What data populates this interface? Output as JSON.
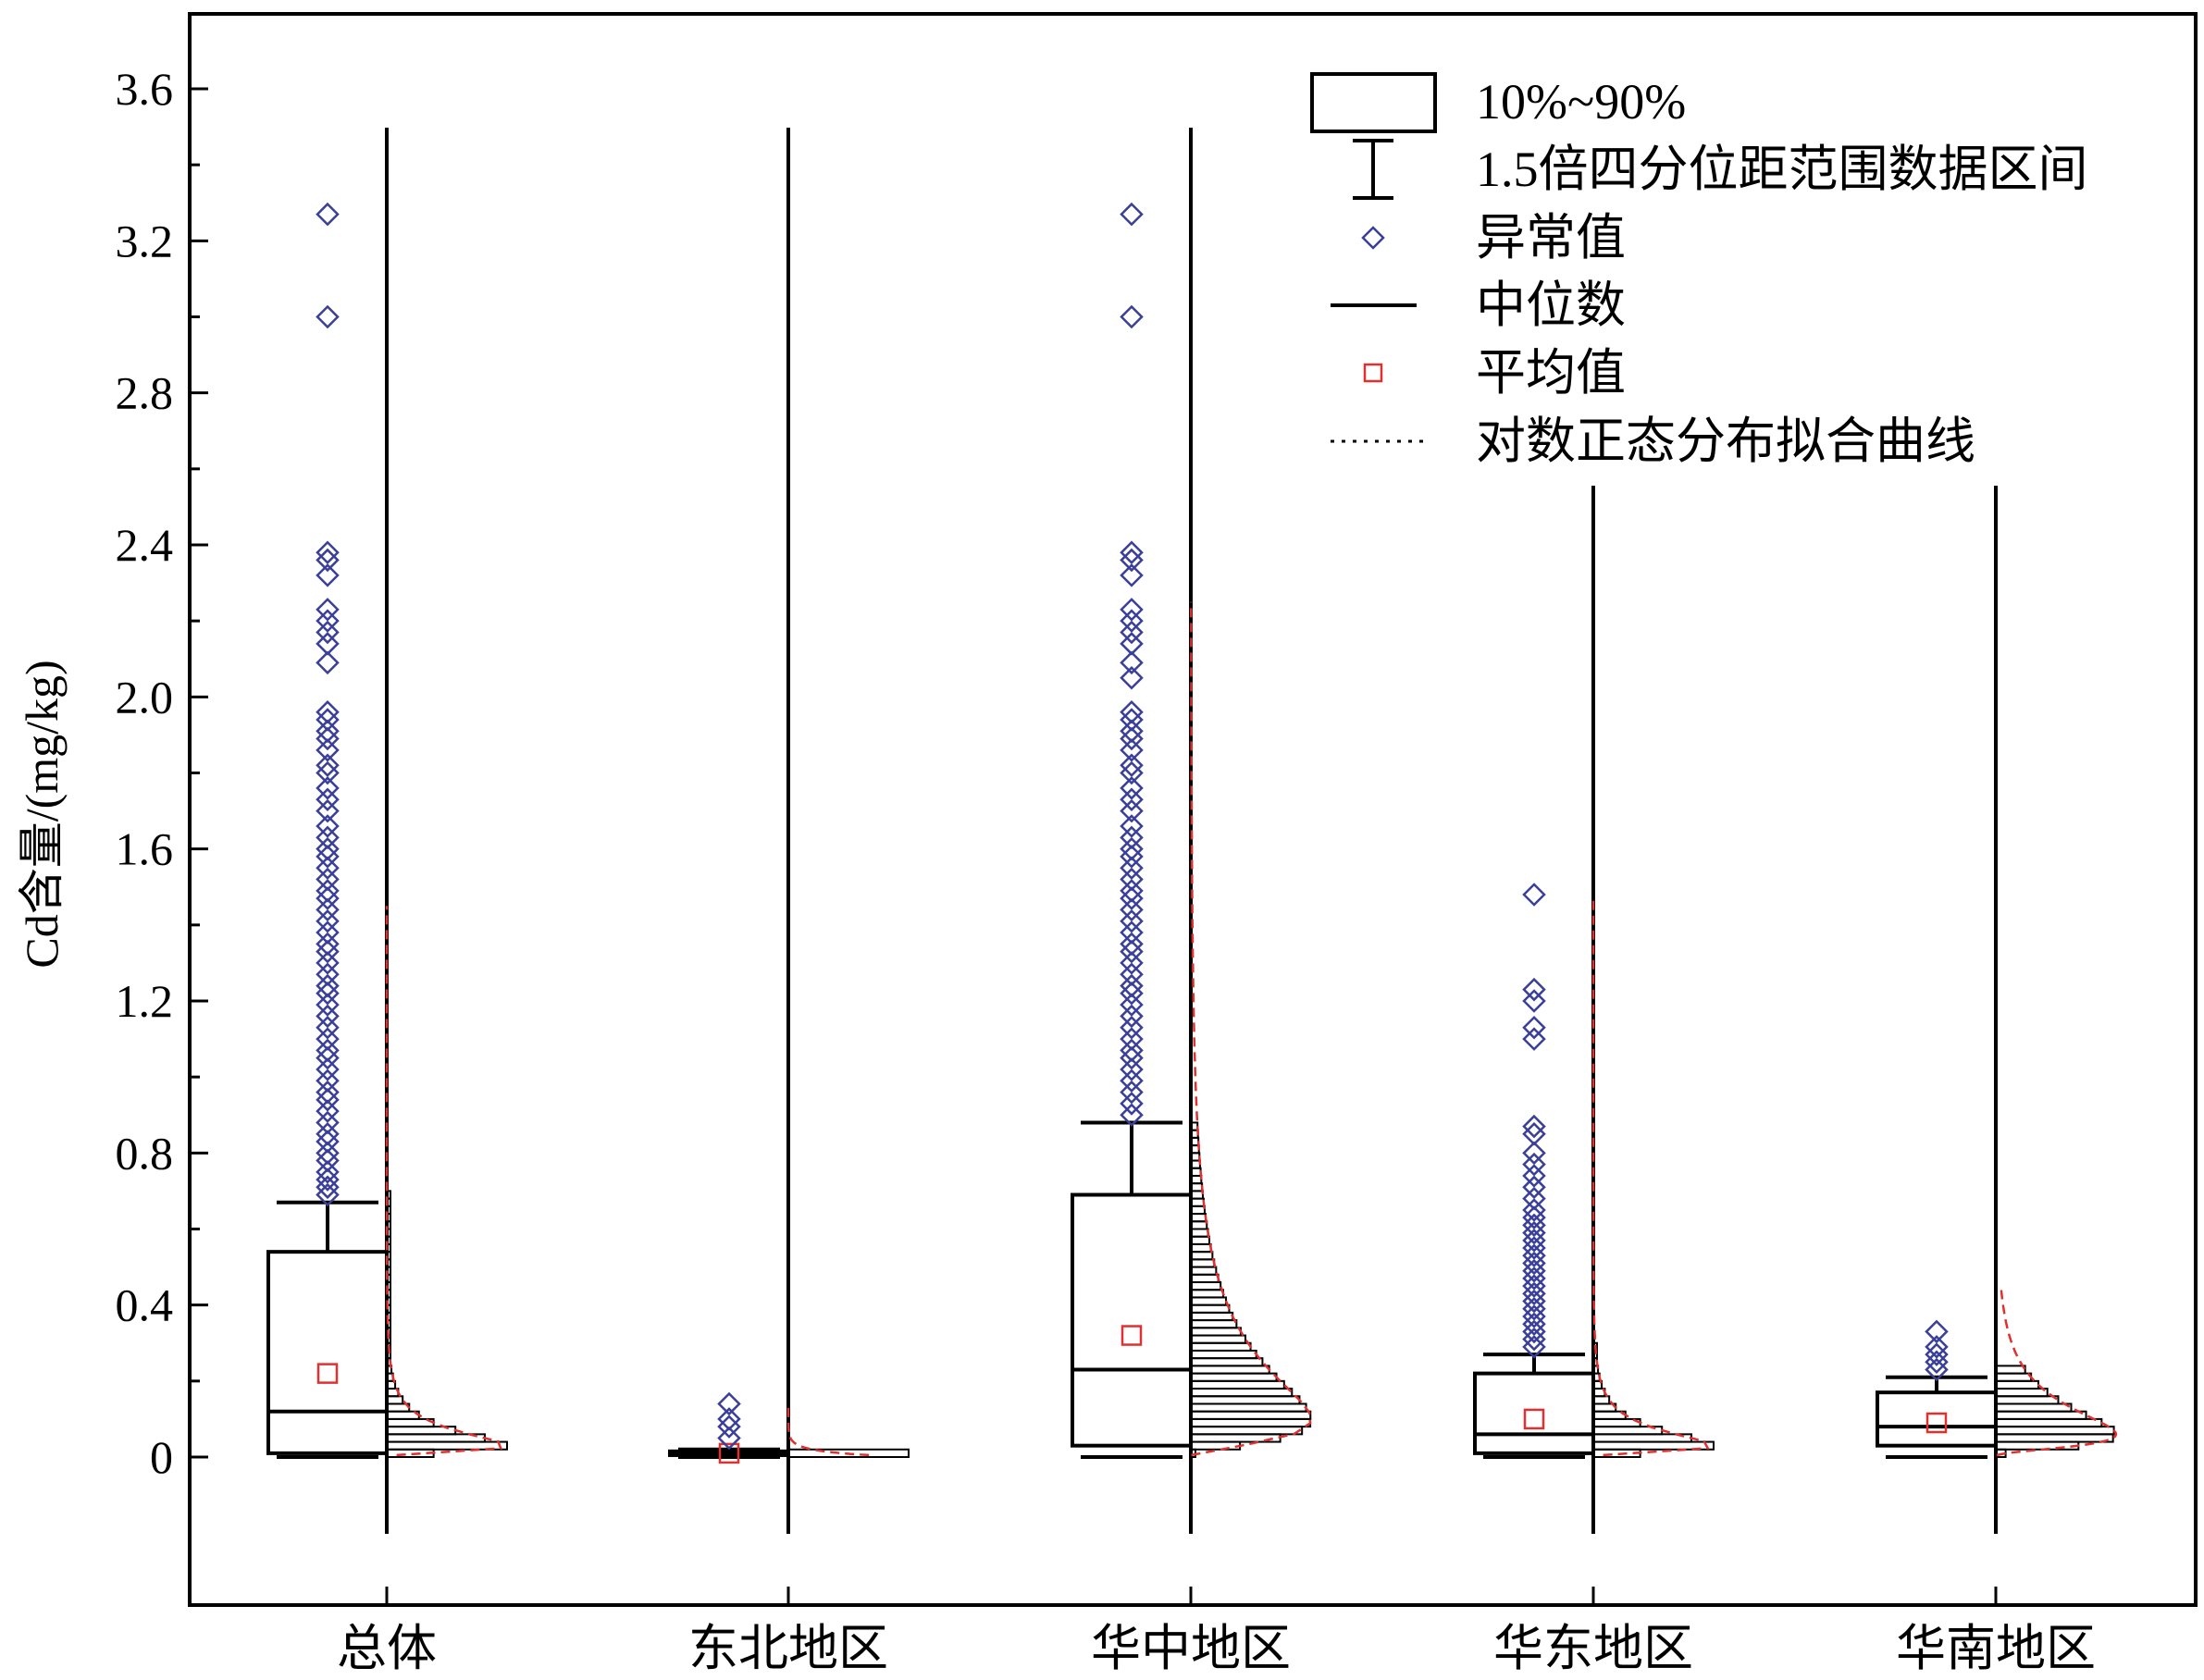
{
  "chart_data": {
    "type": "box",
    "ylabel": "Cd含量/(mg/kg)",
    "ylim": [
      -0.2,
      3.75
    ],
    "yticks": [
      "0",
      "0.4",
      "0.8",
      "1.2",
      "1.6",
      "2.0",
      "2.4",
      "2.8",
      "3.2",
      "3.6"
    ],
    "ytick_values": [
      0,
      0.4,
      0.8,
      1.2,
      1.6,
      2.0,
      2.4,
      2.8,
      3.2,
      3.6
    ],
    "categories": [
      "总体",
      "东北地区",
      "华中地区",
      "华东地区",
      "华南地区"
    ],
    "legend": {
      "box": "10%~90%",
      "whisker": "1.5倍四分位距范围数据区间",
      "outlier": "异常值",
      "median": "中位数",
      "mean": "平均值",
      "fit": "对数正态分布拟合曲线"
    },
    "colors": {
      "outlier": "#3a3f9a",
      "mean": "#e03030",
      "fit": "#e03030",
      "line": "#000000"
    },
    "groups": [
      {
        "name": "总体",
        "whisker_low": 0.0,
        "p10": 0.01,
        "median": 0.12,
        "p90": 0.54,
        "whisker_high": 0.67,
        "mean": 0.22,
        "outliers": [
          3.27,
          3.0,
          2.38,
          2.36,
          2.32,
          2.23,
          2.2,
          2.17,
          2.14,
          2.09,
          1.96,
          1.94,
          1.91,
          1.89,
          1.86,
          1.82,
          1.8,
          1.76,
          1.73,
          1.7,
          1.66,
          1.63,
          1.6,
          1.58,
          1.55,
          1.52,
          1.49,
          1.47,
          1.44,
          1.41,
          1.38,
          1.35,
          1.33,
          1.3,
          1.27,
          1.24,
          1.22,
          1.19,
          1.16,
          1.13,
          1.1,
          1.07,
          1.05,
          1.02,
          0.99,
          0.96,
          0.94,
          0.91,
          0.88,
          0.85,
          0.83,
          0.8,
          0.78,
          0.75,
          0.73,
          0.71,
          0.69
        ],
        "hist_max": 0.02,
        "fit_top": 1.45
      },
      {
        "name": "东北地区",
        "whisker_low": 0.0,
        "p10": 0.005,
        "median": 0.01,
        "p90": 0.015,
        "whisker_high": 0.02,
        "mean": 0.01,
        "outliers": [
          0.14,
          0.1,
          0.08,
          0.05
        ],
        "hist_max": 0.02,
        "fit_top": 0.13
      },
      {
        "name": "华中地区",
        "whisker_low": 0.0,
        "p10": 0.03,
        "median": 0.23,
        "p90": 0.69,
        "whisker_high": 0.88,
        "mean": 0.32,
        "outliers": [
          3.27,
          3.0,
          2.38,
          2.36,
          2.32,
          2.23,
          2.2,
          2.17,
          2.14,
          2.09,
          2.05,
          1.96,
          1.94,
          1.91,
          1.89,
          1.86,
          1.82,
          1.8,
          1.76,
          1.73,
          1.7,
          1.66,
          1.63,
          1.6,
          1.58,
          1.55,
          1.52,
          1.49,
          1.47,
          1.44,
          1.41,
          1.38,
          1.35,
          1.33,
          1.3,
          1.27,
          1.24,
          1.22,
          1.19,
          1.16,
          1.13,
          1.1,
          1.07,
          1.05,
          1.02,
          0.99,
          0.96,
          0.93,
          0.9
        ],
        "hist_max": 0.05,
        "fit_top": 2.25
      },
      {
        "name": "华东地区",
        "whisker_low": 0.0,
        "p10": 0.01,
        "median": 0.06,
        "p90": 0.22,
        "whisker_high": 0.27,
        "mean": 0.1,
        "outliers": [
          1.48,
          1.23,
          1.2,
          1.13,
          1.1,
          0.87,
          0.85,
          0.8,
          0.77,
          0.74,
          0.71,
          0.68,
          0.65,
          0.63,
          0.61,
          0.59,
          0.57,
          0.55,
          0.53,
          0.51,
          0.49,
          0.47,
          0.45,
          0.43,
          0.41,
          0.39,
          0.37,
          0.35,
          0.33,
          0.31,
          0.29
        ],
        "hist_max": 0.02,
        "fit_top": 1.47
      },
      {
        "name": "华南地区",
        "whisker_low": 0.0,
        "p10": 0.03,
        "median": 0.08,
        "p90": 0.17,
        "whisker_high": 0.21,
        "mean": 0.09,
        "outliers": [
          0.33,
          0.29,
          0.27,
          0.25,
          0.23
        ],
        "hist_max": 0.1,
        "fit_top": 0.44
      }
    ]
  }
}
